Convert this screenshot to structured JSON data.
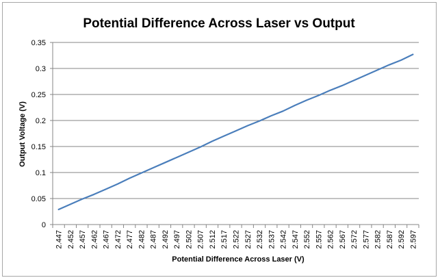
{
  "chart_data": {
    "type": "line",
    "title": "Potential Difference Across Laser vs Output",
    "xlabel": "Potential Difference Across Laser (V)",
    "ylabel": "Output Voltage (V)",
    "categories": [
      "2.447",
      "2.452",
      "2.457",
      "2.462",
      "2.467",
      "2.472",
      "2.477",
      "2.482",
      "2.487",
      "2.492",
      "2.497",
      "2.502",
      "2.507",
      "2.512",
      "2.517",
      "2.522",
      "2.527",
      "2.532",
      "2.537",
      "2.542",
      "2.547",
      "2.552",
      "2.557",
      "2.562",
      "2.567",
      "2.572",
      "2.577",
      "2.582",
      "2.587",
      "2.592",
      "2.597"
    ],
    "series": [
      {
        "values": [
          0.029,
          0.039,
          0.049,
          0.058,
          0.068,
          0.078,
          0.089,
          0.099,
          0.109,
          0.119,
          0.129,
          0.139,
          0.149,
          0.16,
          0.17,
          0.18,
          0.19,
          0.199,
          0.209,
          0.218,
          0.229,
          0.239,
          0.248,
          0.258,
          0.267,
          0.277,
          0.287,
          0.297,
          0.307,
          0.316,
          0.327
        ],
        "color": "#4a7ebb"
      }
    ],
    "ylim": [
      0,
      0.35
    ],
    "yticks": [
      "0",
      "0.05",
      "0.1",
      "0.15",
      "0.2",
      "0.25",
      "0.3",
      "0.35"
    ],
    "grid": true,
    "legend": "none"
  }
}
